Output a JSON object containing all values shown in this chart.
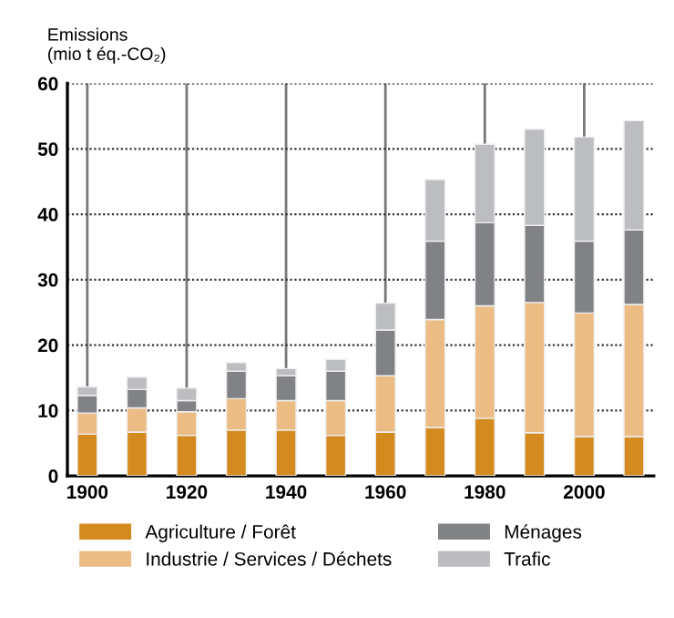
{
  "chart_data": {
    "type": "bar",
    "stacked": true,
    "ylabel": "Emissions\n(mio t éq.-CO₂)",
    "x": [
      1900,
      1910,
      1920,
      1930,
      1940,
      1950,
      1960,
      1970,
      1980,
      1990,
      2000,
      2010
    ],
    "series": [
      {
        "name": "Agriculture / Forêt",
        "color": "#d48a1e",
        "values": [
          6.4,
          6.7,
          6.2,
          7.0,
          7.0,
          6.2,
          6.7,
          7.4,
          8.8,
          6.6,
          6.0,
          6.0
        ]
      },
      {
        "name": "Industrie / Services / Déchets",
        "color": "#ebbd84",
        "values": [
          3.2,
          3.7,
          3.6,
          4.8,
          4.5,
          5.3,
          8.6,
          16.5,
          17.2,
          19.9,
          18.9,
          20.2
        ]
      },
      {
        "name": "Ménages",
        "color": "#818285",
        "values": [
          2.7,
          2.8,
          1.7,
          4.2,
          3.8,
          4.5,
          7.0,
          12.0,
          12.7,
          11.8,
          11.0,
          11.4
        ]
      },
      {
        "name": "Trafic",
        "color": "#bcbdc0",
        "values": [
          1.3,
          1.9,
          1.9,
          1.3,
          1.1,
          1.8,
          4.1,
          9.4,
          12.0,
          14.7,
          15.9,
          16.7
        ]
      }
    ],
    "xlim": [
      1896,
      2014
    ],
    "xticks": [
      1900,
      1920,
      1940,
      1960,
      1980,
      2000
    ],
    "ylim": [
      0,
      60
    ],
    "yticks": [
      0,
      10,
      20,
      30,
      40,
      50,
      60
    ],
    "grid": true,
    "legend": "bottom"
  }
}
